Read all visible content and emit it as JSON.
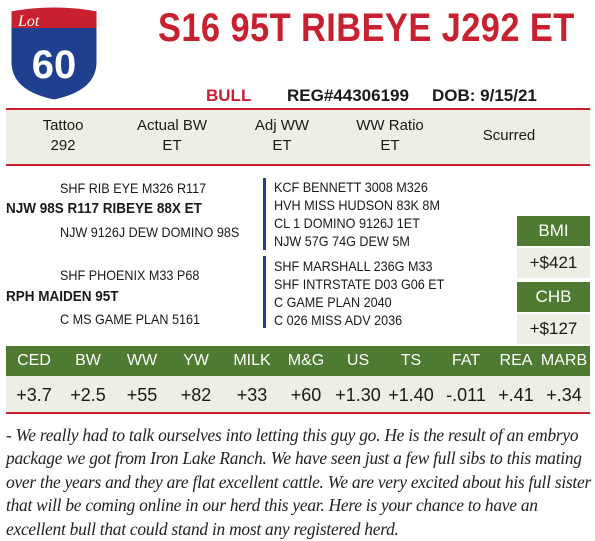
{
  "lot": {
    "word": "Lot",
    "number": "60"
  },
  "header": {
    "title": "S16 95T RIBEYE J292 ET",
    "sex": "BULL",
    "reg": "REG#44306199",
    "dob": "DOB: 9/15/21"
  },
  "info": [
    {
      "label": "Tattoo",
      "value": "292"
    },
    {
      "label": "Actual BW",
      "value": "ET"
    },
    {
      "label": "Adj WW",
      "value": "ET"
    },
    {
      "label": "WW Ratio",
      "value": "ET"
    },
    {
      "label": "Scurred",
      "value": ""
    }
  ],
  "pedigree": {
    "sire_sire": "SHF RIB EYE M326 R117",
    "sire": "NJW 98S R117 RIBEYE 88X ET",
    "sire_dam": "NJW 9126J DEW DOMINO 98S",
    "dam_sire": "SHF PHOENIX M33 P68",
    "dam": "RPH MAIDEN 95T",
    "dam_dam": "C MS GAME PLAN 5161",
    "right": [
      "KCF BENNETT 3008 M326",
      "HVH MISS HUDSON 83K 8M",
      "CL 1 DOMINO 9126J 1ET",
      "NJW 57G 74G DEW 5M",
      "SHF MARSHALL 236G M33",
      "SHF INTRSTATE D03 G06 ET",
      "C GAME PLAN 2040",
      "C 026 MISS ADV 2036"
    ]
  },
  "indexes": [
    {
      "label": "BMI",
      "value": "+$421"
    },
    {
      "label": "CHB",
      "value": "+$127"
    }
  ],
  "epds": [
    {
      "label": "CED",
      "value": "+3.7"
    },
    {
      "label": "BW",
      "value": "+2.5"
    },
    {
      "label": "WW",
      "value": "+55"
    },
    {
      "label": "YW",
      "value": "+82"
    },
    {
      "label": "MILK",
      "value": "+33"
    },
    {
      "label": "M&G",
      "value": "+60"
    },
    {
      "label": "US",
      "value": "+1.30"
    },
    {
      "label": "TS",
      "value": "+1.40"
    },
    {
      "label": "FAT",
      "value": "-.011"
    },
    {
      "label": "REA",
      "value": "+.41"
    },
    {
      "label": "MARB",
      "value": "+.34"
    }
  ],
  "comments": "- We really had to talk ourselves into letting this guy go. He is the result of an embryo package we got from Iron Lake Ranch. We have seen just a few full sibs to this mating over the years and they are flat excellent cattle. We are very excited about his full sister that will be coming online in our herd this year. Here is your chance to have an excellent bull that could stand in most any registered herd.",
  "colors": {
    "red": "#c8202e",
    "green": "#4e7a32",
    "navy": "#1f3f8f",
    "band": "#ecefe3"
  }
}
